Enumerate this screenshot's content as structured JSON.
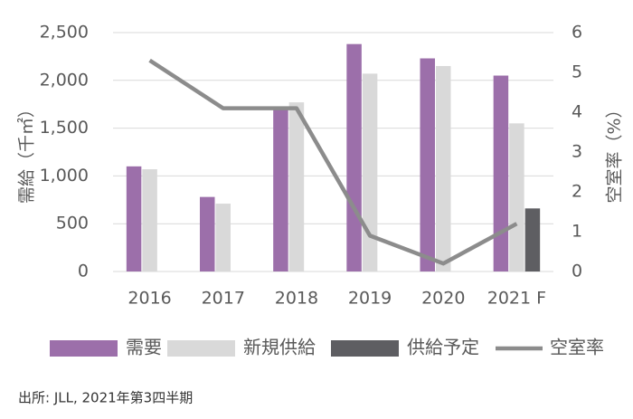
{
  "chart_data": {
    "type": "bar",
    "categories": [
      "2016",
      "2017",
      "2018",
      "2019",
      "2020",
      "2021 F"
    ],
    "y_label": "需給（千㎡）",
    "y2_label": "空室率（%）",
    "series": [
      {
        "name": "需要",
        "color": "#9c6faa",
        "values": [
          1100,
          780,
          1720,
          2380,
          2230,
          2050
        ]
      },
      {
        "name": "新規供給",
        "color": "#d9d9d9",
        "values": [
          1070,
          710,
          1770,
          2070,
          2150,
          1550
        ]
      },
      {
        "name": "供給予定",
        "color": "#5e5e62",
        "values": [
          null,
          null,
          null,
          null,
          null,
          660
        ]
      },
      {
        "name": "空室率",
        "color": "#8c8c8c",
        "type": "line",
        "axis": "y2",
        "values": [
          5.3,
          4.1,
          4.1,
          0.9,
          0.2,
          1.2
        ]
      }
    ],
    "ylim": [
      0,
      2500
    ],
    "yticks": [
      0,
      500,
      {
        "value": 1000,
        "label": "1,000"
      },
      {
        "value": 1500,
        "label": "1,500"
      },
      {
        "value": 2000,
        "label": "2,000"
      },
      {
        "value": 2500,
        "label": "2,500"
      }
    ],
    "y2lim": [
      0,
      6
    ],
    "y2ticks": [
      0,
      1,
      2,
      3,
      4,
      5,
      6
    ],
    "grid": true,
    "legend": "bottom",
    "source": "出所: JLL, 2021年第3四半期"
  }
}
